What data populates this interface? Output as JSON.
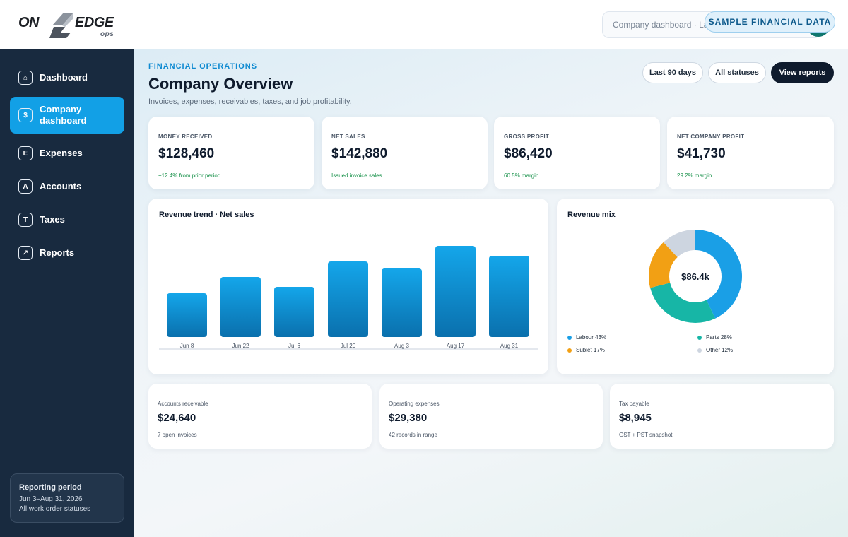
{
  "brand": {
    "logo_left": "ON",
    "logo_right": "EDGE",
    "logo_sub": "ops"
  },
  "header": {
    "search_value": "Company dashboard · Last 90 days",
    "sample_badge": "SAMPLE FINANCIAL DATA"
  },
  "sidebar": {
    "items": [
      {
        "icon": "⌂",
        "icon_name": "home-icon",
        "label": "Dashboard",
        "active": false
      },
      {
        "icon": "$",
        "icon_name": "dollar-icon",
        "label": "Company dashboard",
        "active": true
      },
      {
        "icon": "E",
        "icon_name": "expenses-icon",
        "label": "Expenses",
        "active": false
      },
      {
        "icon": "A",
        "icon_name": "accounts-icon",
        "label": "Accounts",
        "active": false
      },
      {
        "icon": "T",
        "icon_name": "taxes-icon",
        "label": "Taxes",
        "active": false
      },
      {
        "icon": "↗",
        "icon_name": "trend-arrow-icon",
        "label": "Reports",
        "active": false
      }
    ],
    "period": {
      "title": "Reporting period",
      "range": "Jun 3–Aug 31, 2026",
      "statuses": "All work order statuses"
    }
  },
  "page": {
    "eyebrow": "FINANCIAL OPERATIONS",
    "title": "Company Overview",
    "subtitle": "Invoices, expenses, receivables, taxes, and job profitability.",
    "filters": {
      "range": "Last 90 days",
      "status": "All statuses",
      "view_reports": "View reports"
    }
  },
  "kpis": [
    {
      "label": "MONEY RECEIVED",
      "value": "$128,460",
      "note": "+12.4% from prior period"
    },
    {
      "label": "NET SALES",
      "value": "$142,880",
      "note": "Issued invoice sales"
    },
    {
      "label": "GROSS PROFIT",
      "value": "$86,420",
      "note": "60.5% margin"
    },
    {
      "label": "NET COMPANY PROFIT",
      "value": "$41,730",
      "note": "29.2% margin"
    }
  ],
  "revenue_trend": {
    "title": "Revenue trend · Net sales"
  },
  "revenue_mix": {
    "title": "Revenue mix",
    "center_label": "$86.4k"
  },
  "summaries": [
    {
      "label": "Accounts receivable",
      "value": "$24,640",
      "note": "7 open invoices"
    },
    {
      "label": "Operating expenses",
      "value": "$29,380",
      "note": "42 records in range"
    },
    {
      "label": "Tax payable",
      "value": "$8,945",
      "note": "GST + PST snapshot"
    }
  ],
  "colors": {
    "accent": "#12a0e6",
    "sidebar": "#182a3f",
    "positive": "#159048"
  },
  "chart_data": [
    {
      "type": "bar",
      "title": "Revenue trend · Net sales",
      "categories": [
        "Jun 8",
        "Jun 22",
        "Jul 6",
        "Jul 20",
        "Aug 3",
        "Aug 17",
        "Aug 31"
      ],
      "values": [
        62,
        85,
        71,
        107,
        97,
        129,
        115
      ],
      "ylim": [
        0,
        140
      ],
      "grid": false,
      "bar_color": "#0f93d8"
    },
    {
      "type": "pie",
      "title": "Revenue mix",
      "donut": true,
      "labels": [
        "Labour 43%",
        "Parts 28%",
        "Sublet 17%",
        "Other 12%"
      ],
      "values": [
        43,
        28,
        17,
        12
      ],
      "colors": [
        "#1a9fe6",
        "#17b6a6",
        "#f2a014",
        "#cdd5e0"
      ],
      "legend_position": "bottom"
    }
  ]
}
